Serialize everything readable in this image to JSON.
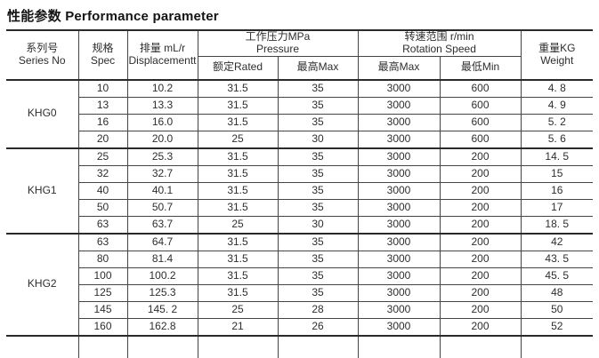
{
  "title": {
    "zh": "性能参数",
    "en": "Performance parameter"
  },
  "table": {
    "headers": {
      "series": {
        "zh": "系列号",
        "en": "Series  No"
      },
      "spec": {
        "zh": "规格",
        "en": "Spec"
      },
      "displacement": {
        "zh": "排量 mL/r",
        "en": "Displacementt"
      },
      "pressure": {
        "zh": "工作压力MPa",
        "en": "Pressure"
      },
      "pressure_rated": "额定Rated",
      "pressure_max": "最高Max",
      "rotation": {
        "zh": "转速范围 r/min",
        "en": "Rotation Speed"
      },
      "rotation_max": "最高Max",
      "rotation_min": "最低Min",
      "weight": {
        "zh": "重量KG",
        "en": "Weight"
      }
    },
    "row_fields": [
      "spec",
      "displacement_ml_r",
      "pressure_rated_mpa",
      "pressure_max_mpa",
      "rotation_max_rpm",
      "rotation_min_rpm",
      "weight_kg"
    ],
    "groups": [
      {
        "series": "KHG0",
        "rows": [
          [
            "10",
            "10.2",
            "31.5",
            "35",
            "3000",
            "600",
            "4. 8"
          ],
          [
            "13",
            "13.3",
            "31.5",
            "35",
            "3000",
            "600",
            "4. 9"
          ],
          [
            "16",
            "16.0",
            "31.5",
            "35",
            "3000",
            "600",
            "5. 2"
          ],
          [
            "20",
            "20.0",
            "25",
            "30",
            "3000",
            "600",
            "5. 6"
          ]
        ]
      },
      {
        "series": "KHG1",
        "rows": [
          [
            "25",
            "25.3",
            "31.5",
            "35",
            "3000",
            "200",
            "14. 5"
          ],
          [
            "32",
            "32.7",
            "31.5",
            "35",
            "3000",
            "200",
            "15"
          ],
          [
            "40",
            "40.1",
            "31.5",
            "35",
            "3000",
            "200",
            "16"
          ],
          [
            "50",
            "50.7",
            "31.5",
            "35",
            "3000",
            "200",
            "17"
          ],
          [
            "63",
            "63.7",
            "25",
            "30",
            "3000",
            "200",
            "18. 5"
          ]
        ]
      },
      {
        "series": "KHG2",
        "rows": [
          [
            "63",
            "64.7",
            "31.5",
            "35",
            "3000",
            "200",
            "42"
          ],
          [
            "80",
            "81.4",
            "31.5",
            "35",
            "3000",
            "200",
            "43. 5"
          ],
          [
            "100",
            "100.2",
            "31.5",
            "35",
            "3000",
            "200",
            "45. 5"
          ],
          [
            "125",
            "125.3",
            "31.5",
            "35",
            "3000",
            "200",
            "48"
          ],
          [
            "145",
            "145. 2",
            "25",
            "28",
            "3000",
            "200",
            "50"
          ],
          [
            "160",
            "162.8",
            "21",
            "26",
            "3000",
            "200",
            "52"
          ]
        ]
      }
    ]
  },
  "colors": {
    "background": "#ffffff",
    "text": "#2e2e2e",
    "border": "#454545",
    "border_strong": "#2a2a2a"
  }
}
